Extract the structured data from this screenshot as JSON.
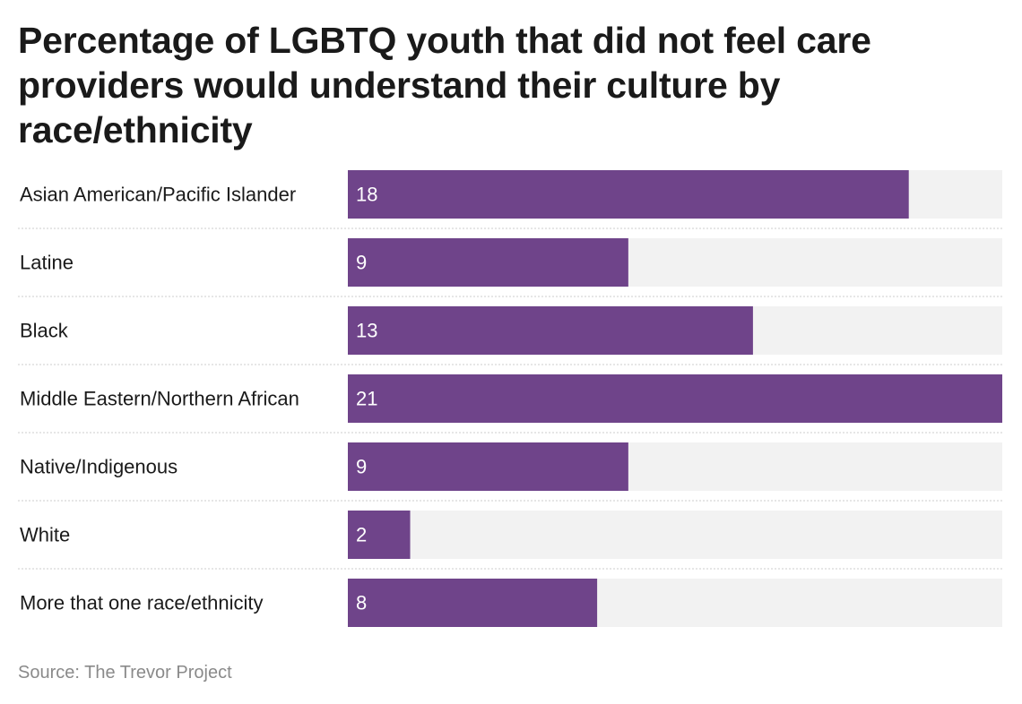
{
  "chart_data": {
    "type": "bar",
    "orientation": "horizontal",
    "title": "Percentage of LGBTQ youth that did not feel care providers would understand their culture by race/ethnicity",
    "categories": [
      "Asian American/Pacific Islander",
      "Latine",
      "Black",
      "Middle Eastern/Northern African",
      "Native/Indigenous",
      "White",
      "More that one race/ethnicity"
    ],
    "values": [
      18,
      9,
      13,
      21,
      9,
      2,
      8
    ],
    "xlim": [
      0,
      21
    ],
    "grid": false,
    "bar_color": "#6f448a",
    "track_color": "#f2f2f2",
    "separator_color": "#cccccc",
    "data_labels": true
  },
  "source": "Source: The Trevor Project"
}
